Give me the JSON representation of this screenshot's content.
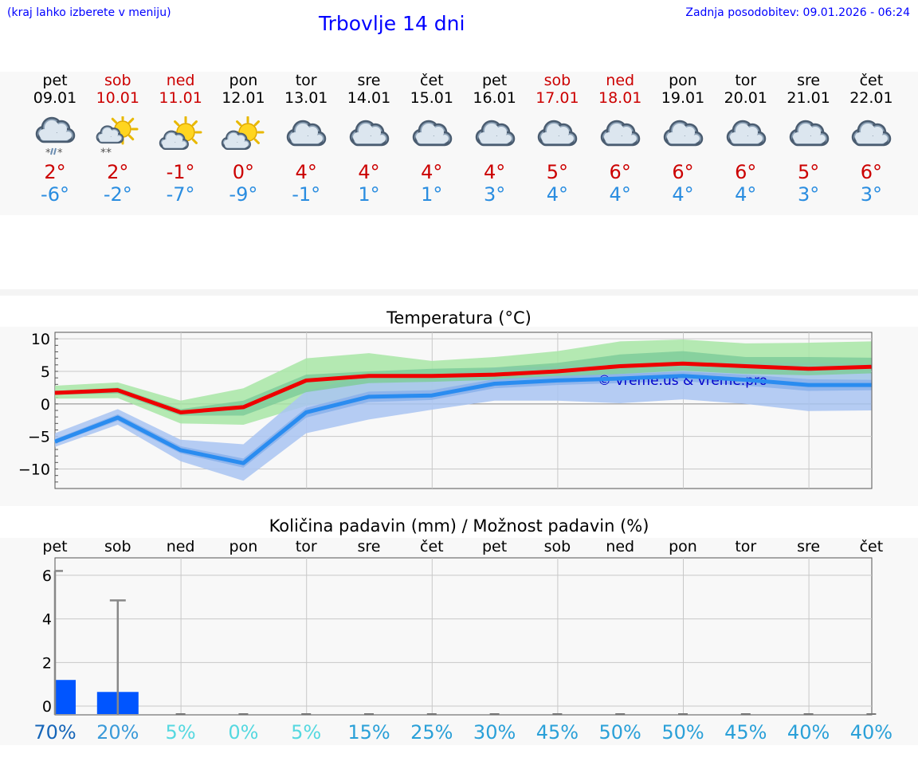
{
  "header": {
    "hint": "(kraj lahko izberete v meniju)",
    "title": "Trbovlje 14 dni",
    "updated": "Zadnja posodobitev: 09.01.2026 - 06:24"
  },
  "forecast": [
    {
      "day": "pet",
      "date": "09.01",
      "weekend": false,
      "icon": "cloud-snow-icon",
      "tmax": "2°",
      "tmin": "-6°"
    },
    {
      "day": "sob",
      "date": "10.01",
      "weekend": true,
      "icon": "sun-cloud-snow-icon",
      "tmax": "2°",
      "tmin": "-2°"
    },
    {
      "day": "ned",
      "date": "11.01",
      "weekend": true,
      "icon": "sun-cloud-icon",
      "tmax": "-1°",
      "tmin": "-7°"
    },
    {
      "day": "pon",
      "date": "12.01",
      "weekend": false,
      "icon": "sun-cloud-icon",
      "tmax": "0°",
      "tmin": "-9°"
    },
    {
      "day": "tor",
      "date": "13.01",
      "weekend": false,
      "icon": "cloud-icon",
      "tmax": "4°",
      "tmin": "-1°"
    },
    {
      "day": "sre",
      "date": "14.01",
      "weekend": false,
      "icon": "cloud-icon",
      "tmax": "4°",
      "tmin": "1°"
    },
    {
      "day": "čet",
      "date": "15.01",
      "weekend": false,
      "icon": "cloud-icon",
      "tmax": "4°",
      "tmin": "1°"
    },
    {
      "day": "pet",
      "date": "16.01",
      "weekend": false,
      "icon": "cloud-icon",
      "tmax": "4°",
      "tmin": "3°"
    },
    {
      "day": "sob",
      "date": "17.01",
      "weekend": true,
      "icon": "cloud-icon",
      "tmax": "5°",
      "tmin": "4°"
    },
    {
      "day": "ned",
      "date": "18.01",
      "weekend": true,
      "icon": "cloud-icon",
      "tmax": "6°",
      "tmin": "4°"
    },
    {
      "day": "pon",
      "date": "19.01",
      "weekend": false,
      "icon": "cloud-icon",
      "tmax": "6°",
      "tmin": "4°"
    },
    {
      "day": "tor",
      "date": "20.01",
      "weekend": false,
      "icon": "cloud-icon",
      "tmax": "6°",
      "tmin": "4°"
    },
    {
      "day": "sre",
      "date": "21.01",
      "weekend": false,
      "icon": "cloud-icon",
      "tmax": "5°",
      "tmin": "3°"
    },
    {
      "day": "čet",
      "date": "22.01",
      "weekend": false,
      "icon": "cloud-icon",
      "tmax": "6°",
      "tmin": "3°"
    }
  ],
  "colors": {
    "max_line": "#ee0000",
    "min_line": "#2a8cf0",
    "max_band_outer": "#a8e6a6",
    "max_band_inner": "#7fcc9a",
    "min_band_outer": "#a9c4f2",
    "min_band_inner": "#8ab0ea",
    "bar": "#0055ff",
    "errbar": "#888888",
    "weekday": "#000000",
    "weekend": "#cc0000"
  },
  "chart_data": [
    {
      "type": "line",
      "title": "Temperatura (°C)",
      "ylim": [
        -13,
        11
      ],
      "yticks": [
        10,
        5,
        0,
        -5,
        -10
      ],
      "ytick_labels": [
        "10",
        "5",
        "0",
        "−5",
        "−10"
      ],
      "watermark": "© vreme.us & vreme.pro",
      "series": [
        {
          "name": "max",
          "values": [
            1.7,
            2.1,
            -1.3,
            -0.5,
            3.6,
            4.3,
            4.3,
            4.5,
            5.0,
            5.8,
            6.2,
            5.8,
            5.4,
            5.7
          ],
          "band_outer_low": [
            0.8,
            0.9,
            -3.0,
            -3.2,
            -0.3,
            1.0,
            1.5,
            2.8,
            3.2,
            3.8,
            4.3,
            3.6,
            2.8,
            2.9
          ],
          "band_outer_high": [
            2.8,
            3.3,
            0.5,
            2.4,
            7.0,
            7.8,
            6.6,
            7.2,
            8.1,
            9.6,
            9.9,
            9.3,
            9.4,
            9.6
          ],
          "band_inner_low": [
            1.4,
            1.6,
            -1.8,
            -1.8,
            1.8,
            3.2,
            3.4,
            3.7,
            3.9,
            4.6,
            5.1,
            4.6,
            4.4,
            4.7
          ],
          "band_inner_high": [
            2.0,
            2.5,
            -0.8,
            0.5,
            4.5,
            5.0,
            5.4,
            5.6,
            6.3,
            7.6,
            8.1,
            7.2,
            7.2,
            7.1
          ]
        },
        {
          "name": "min",
          "values": [
            -5.8,
            -2.1,
            -7.1,
            -9.1,
            -1.3,
            1.1,
            1.3,
            3.1,
            3.6,
            3.9,
            4.3,
            3.7,
            2.9,
            2.9
          ],
          "band_outer_low": [
            -6.6,
            -3.2,
            -8.8,
            -11.8,
            -4.5,
            -2.4,
            -0.9,
            0.5,
            0.5,
            0.1,
            0.7,
            0.0,
            -1.1,
            -1.0
          ],
          "band_outer_high": [
            -4.5,
            -0.8,
            -5.5,
            -6.2,
            2.0,
            4.4,
            4.4,
            5.6,
            5.8,
            6.2,
            6.3,
            6.4,
            6.3,
            6.2
          ],
          "band_inner_low": [
            -6.1,
            -2.6,
            -7.6,
            -9.8,
            -2.1,
            0.3,
            0.6,
            2.4,
            2.9,
            3.2,
            3.5,
            2.8,
            2.0,
            2.1
          ],
          "band_inner_high": [
            -5.4,
            -1.6,
            -6.5,
            -8.4,
            -0.6,
            1.9,
            2.1,
            3.8,
            4.3,
            4.6,
            5.0,
            4.5,
            3.8,
            3.7
          ]
        }
      ]
    },
    {
      "type": "bar",
      "title": "Količina padavin (mm) / Možnost padavin (%)",
      "categories": [
        "pet",
        "sob",
        "ned",
        "pon",
        "tor",
        "sre",
        "čet",
        "pet",
        "sob",
        "ned",
        "pon",
        "tor",
        "sre",
        "čet"
      ],
      "ylim": [
        -0.4,
        6.8
      ],
      "yticks": [
        0,
        2,
        4,
        6
      ],
      "ytick_labels": [
        "0",
        "2",
        "4",
        "6"
      ],
      "values": [
        1.2,
        0.65,
        0,
        0,
        0,
        0,
        0,
        0,
        0,
        0,
        0,
        0,
        0,
        0
      ],
      "error_high": [
        6.2,
        4.85,
        0,
        0,
        0,
        0,
        0,
        0,
        0,
        0,
        0,
        0,
        0,
        0
      ],
      "probability_labels": [
        "70%",
        "20%",
        "5%",
        "0%",
        "5%",
        "15%",
        "25%",
        "30%",
        "45%",
        "50%",
        "50%",
        "45%",
        "40%",
        "40%"
      ],
      "probability_colors": [
        "#1565b8",
        "#3a9ad9",
        "#55d8e0",
        "#55d8e0",
        "#55d8e0",
        "#2aa0d8",
        "#2aa0d8",
        "#2aa0d8",
        "#2aa0d8",
        "#2aa0d8",
        "#2aa0d8",
        "#2aa0d8",
        "#2aa0d8",
        "#2aa0d8"
      ]
    }
  ]
}
